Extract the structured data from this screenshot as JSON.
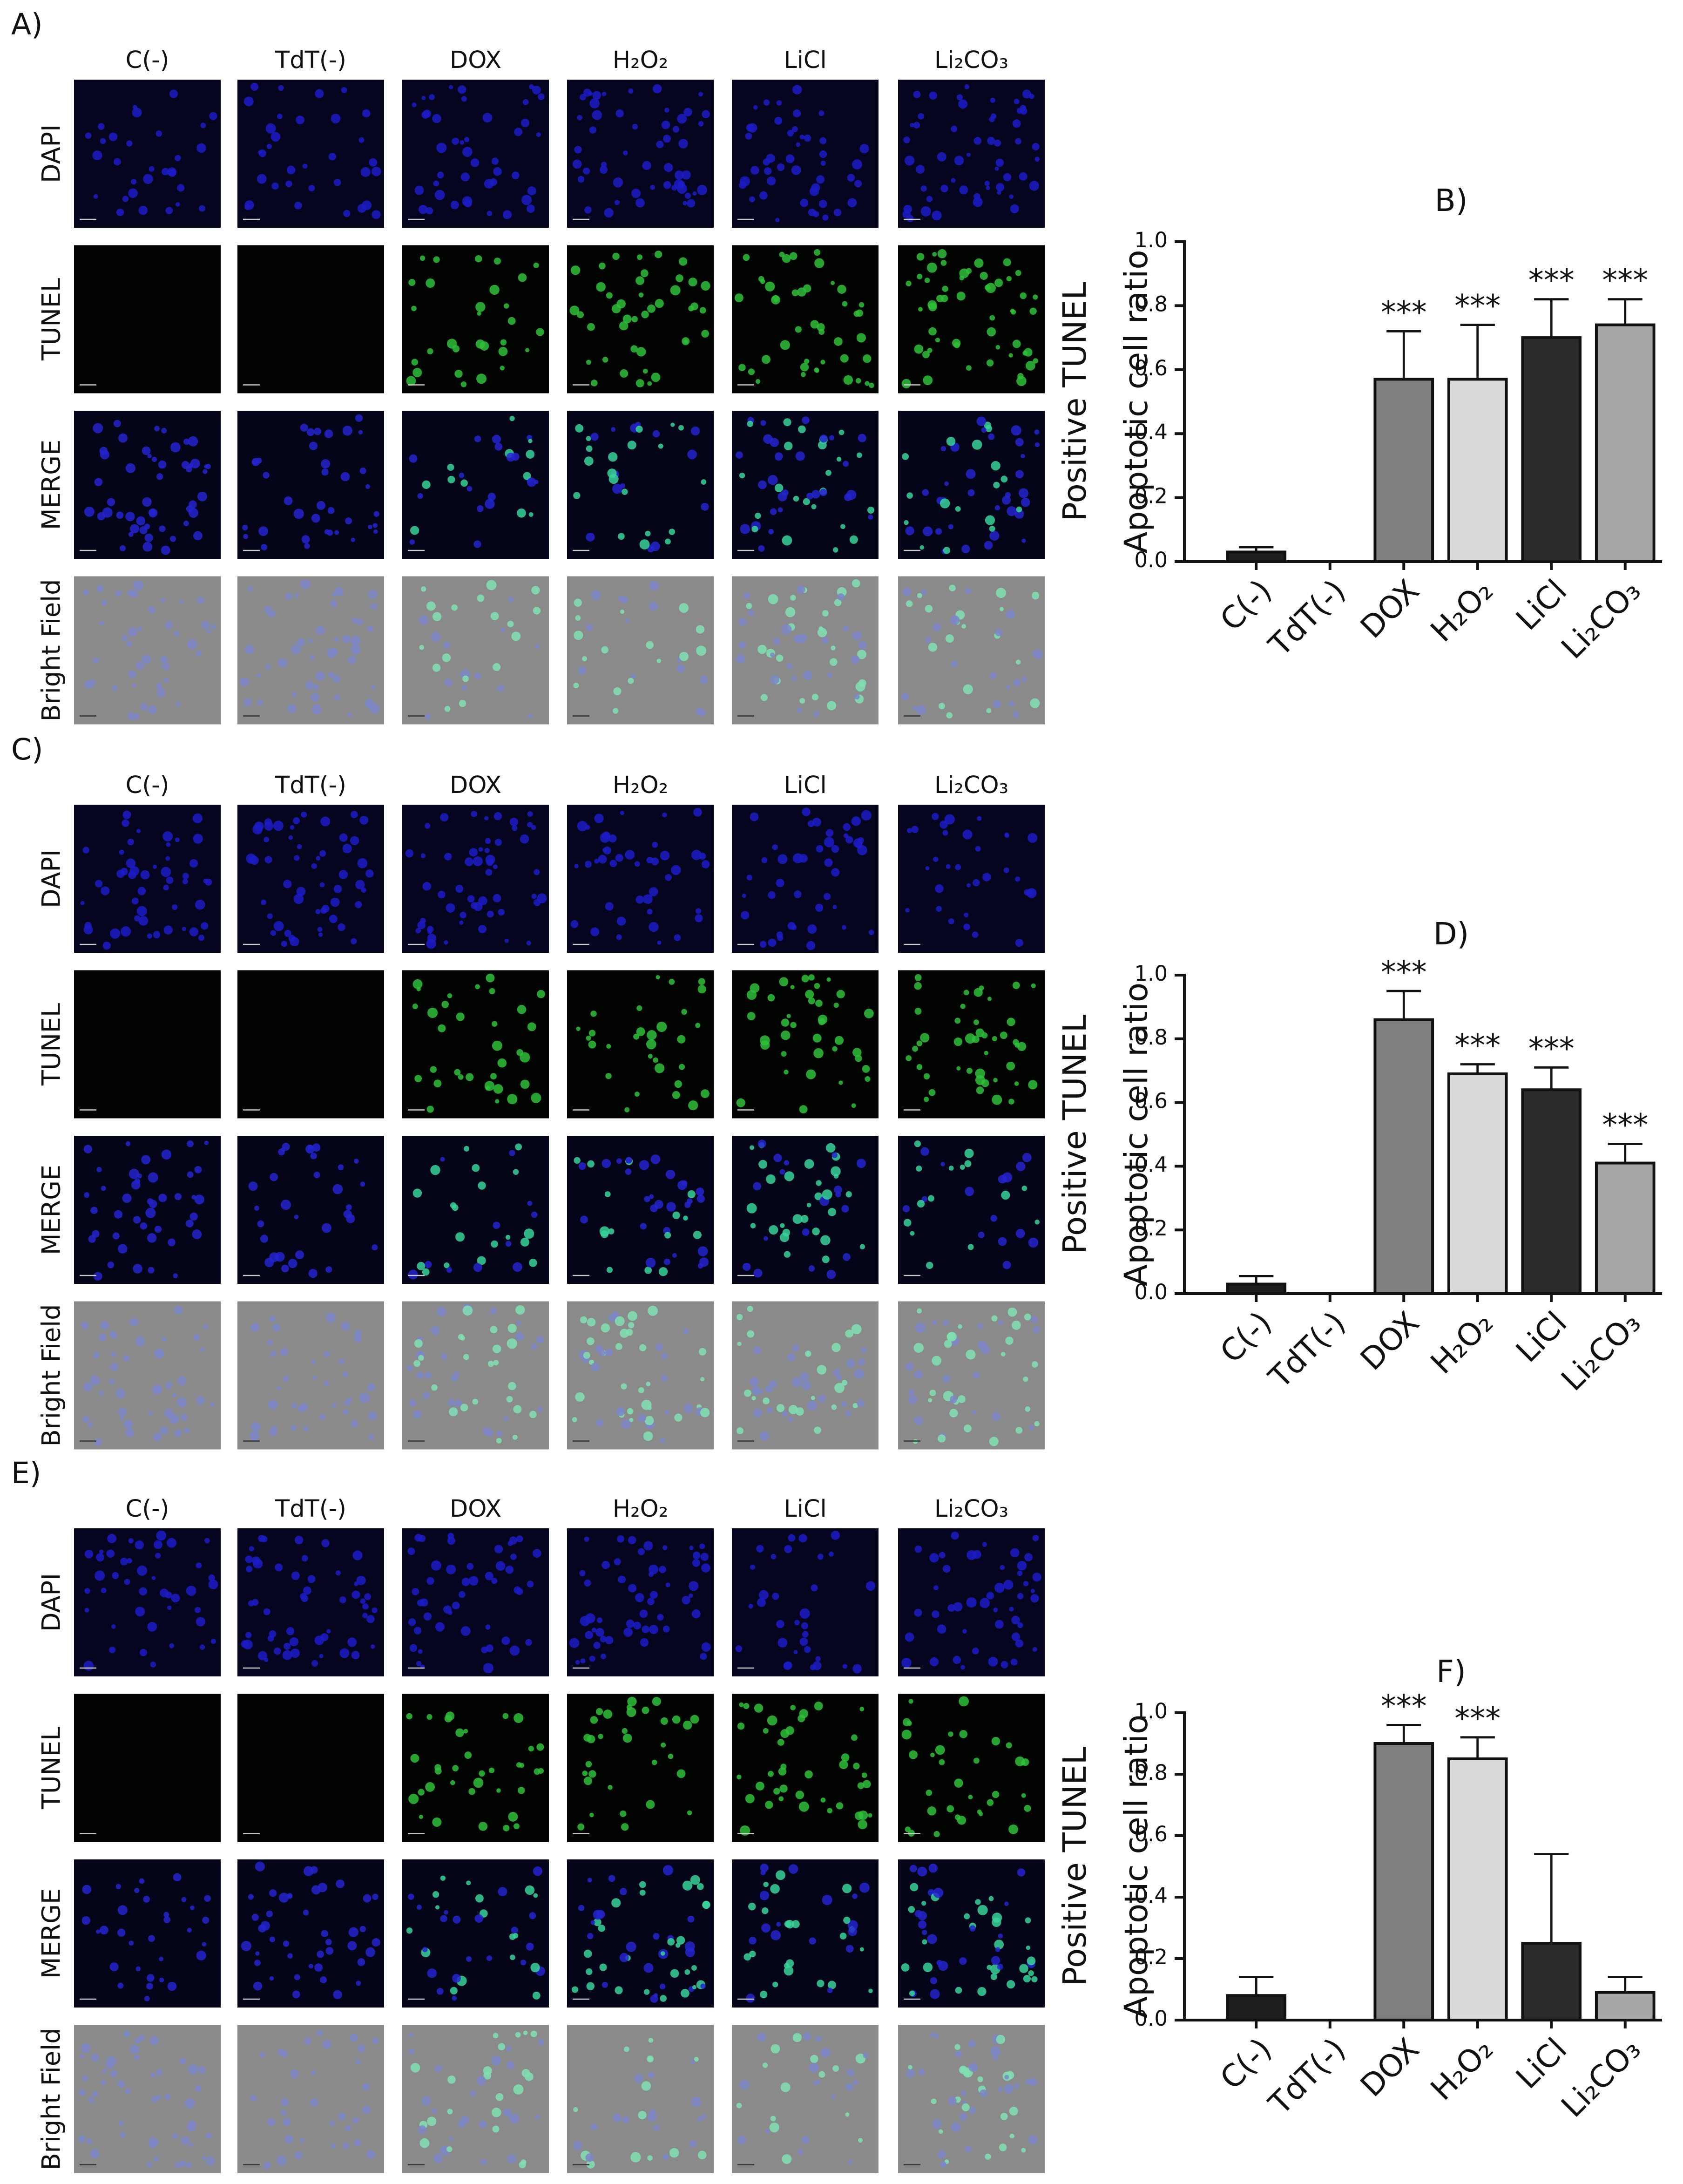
{
  "panels": [
    {
      "label": "A)",
      "columns": [
        "C(-)",
        "TdT(-)",
        "DOX",
        "H₂O₂",
        "LiCl",
        "Li₂CO₃"
      ],
      "rows": [
        "DAPI",
        "TUNEL",
        "MERGE",
        "Bright Field"
      ]
    },
    {
      "label": "C)",
      "columns": [
        "C(-)",
        "TdT(-)",
        "DOX",
        "H₂O₂",
        "LiCl",
        "Li₂CO₃"
      ],
      "rows": [
        "DAPI",
        "TUNEL",
        "MERGE",
        "Bright Field"
      ]
    },
    {
      "label": "E)",
      "columns": [
        "C(-)",
        "TdT(-)",
        "DOX",
        "H₂O₂",
        "LiCl",
        "Li₂CO₃"
      ],
      "rows": [
        "DAPI",
        "TUNEL",
        "MERGE",
        "Bright Field"
      ]
    }
  ],
  "chart_data": [
    {
      "type": "bar",
      "title": "B)",
      "ylabel": [
        "Positive TUNEL",
        "Apoptotic cell ratio"
      ],
      "categories": [
        "C(-)",
        "TdT(-)",
        "DOX",
        "H₂O₂",
        "LiCl",
        "Li₂CO₃"
      ],
      "values": [
        0.03,
        0,
        0.57,
        0.57,
        0.7,
        0.74
      ],
      "errors": [
        0.015,
        0,
        0.15,
        0.17,
        0.12,
        0.08
      ],
      "annotations": [
        null,
        null,
        "***",
        "***",
        "***",
        "***"
      ],
      "colors": [
        "#1e1e1e",
        "#1e1e1e",
        "#7f7f7f",
        "#d9d9d9",
        "#2b2b2b",
        "#a6a6a6"
      ],
      "ylim": [
        0,
        1
      ],
      "yticks": [
        {
          "value": 0,
          "label": "0.0"
        },
        0.2,
        0.4,
        0.6,
        0.8,
        {
          "value": 1,
          "label": "1.0"
        }
      ]
    },
    {
      "type": "bar",
      "title": "D)",
      "ylabel": [
        "Positive TUNEL",
        "Apoptotic cell ratio"
      ],
      "categories": [
        "C(-)",
        "TdT(-)",
        "DOX",
        "H₂O₂",
        "LiCl",
        "Li₂CO₃"
      ],
      "values": [
        0.03,
        0,
        0.86,
        0.69,
        0.64,
        0.41
      ],
      "errors": [
        0.025,
        0,
        0.09,
        0.03,
        0.07,
        0.06
      ],
      "annotations": [
        null,
        null,
        "***",
        "***",
        "***",
        "***"
      ],
      "colors": [
        "#1e1e1e",
        "#1e1e1e",
        "#7f7f7f",
        "#d9d9d9",
        "#2b2b2b",
        "#a6a6a6"
      ],
      "ylim": [
        0,
        1
      ],
      "yticks": [
        {
          "value": 0,
          "label": "0.0"
        },
        0.2,
        0.4,
        0.6,
        0.8,
        {
          "value": 1,
          "label": "1.0"
        }
      ]
    },
    {
      "type": "bar",
      "title": "F)",
      "ylabel": [
        "Positive TUNEL",
        "Apoptotic cell ratio"
      ],
      "categories": [
        "C(-)",
        "TdT(-)",
        "DOX",
        "H₂O₂",
        "LiCl",
        "Li₂CO₃"
      ],
      "values": [
        0.08,
        0,
        0.9,
        0.85,
        0.25,
        0.09
      ],
      "errors": [
        0.06,
        0,
        0.06,
        0.07,
        0.29,
        0.05
      ],
      "annotations": [
        null,
        null,
        "***",
        "***",
        null,
        null
      ],
      "colors": [
        "#1e1e1e",
        "#1e1e1e",
        "#7f7f7f",
        "#d9d9d9",
        "#2b2b2b",
        "#a6a6a6"
      ],
      "ylim": [
        0,
        1
      ],
      "yticks": [
        {
          "value": 0,
          "label": "0.0"
        },
        0.2,
        0.4,
        0.6,
        0.8,
        {
          "value": 1,
          "label": "1.0"
        }
      ]
    }
  ]
}
